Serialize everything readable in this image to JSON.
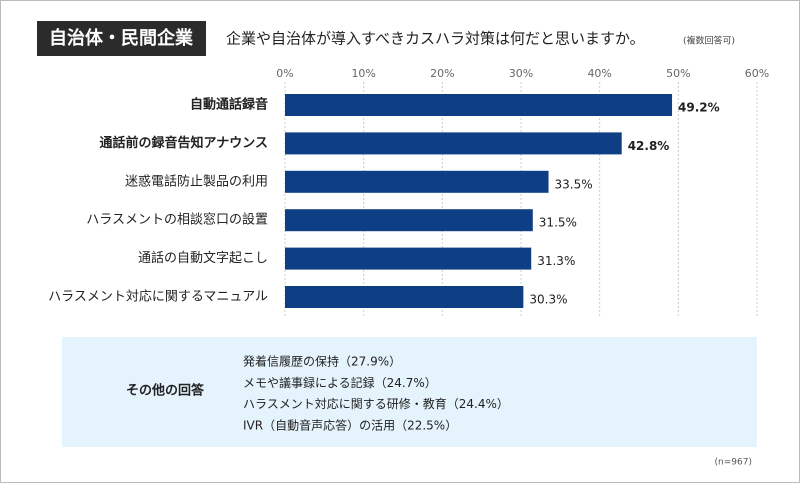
{
  "chart_data": {
    "type": "bar",
    "orientation": "horizontal",
    "tag": "自治体・民間企業",
    "title": "企業や自治体が導入すべきカスハラ対策は何だと思いますか。",
    "subtitle": "(複数回答可)",
    "categories": [
      "自動通話録音",
      "通話前の録音告知アナウンス",
      "迷惑電話防止製品の利用",
      "ハラスメントの相談窓口の設置",
      "通話の自動文字起こし",
      "ハラスメント対応に関するマニュアル"
    ],
    "values": [
      49.2,
      42.8,
      33.5,
      31.5,
      31.3,
      30.3
    ],
    "value_labels": [
      "49.2%",
      "42.8%",
      "33.5%",
      "31.5%",
      "31.3%",
      "30.3%"
    ],
    "color": "#0e3f85",
    "xlim": [
      0,
      60
    ],
    "xticks": [
      {
        "value": 0,
        "label": "0%"
      },
      {
        "value": 10,
        "label": "10%"
      },
      {
        "value": 20,
        "label": "20%"
      },
      {
        "value": 30,
        "label": "30%"
      },
      {
        "value": 40,
        "label": "40%"
      },
      {
        "value": 50,
        "label": "50%"
      },
      {
        "value": 60,
        "label": "60%"
      }
    ],
    "grid": true
  },
  "other_answers": {
    "title": "その他の回答",
    "items": [
      "発着信履歴の保持（27.9%）",
      "メモや議事録による記録（24.7%）",
      "ハラスメント対応に関する研修・教育（24.4%）",
      "IVR（自動音声応答）の活用（22.5%）"
    ]
  },
  "sample_size": "(n=967)"
}
